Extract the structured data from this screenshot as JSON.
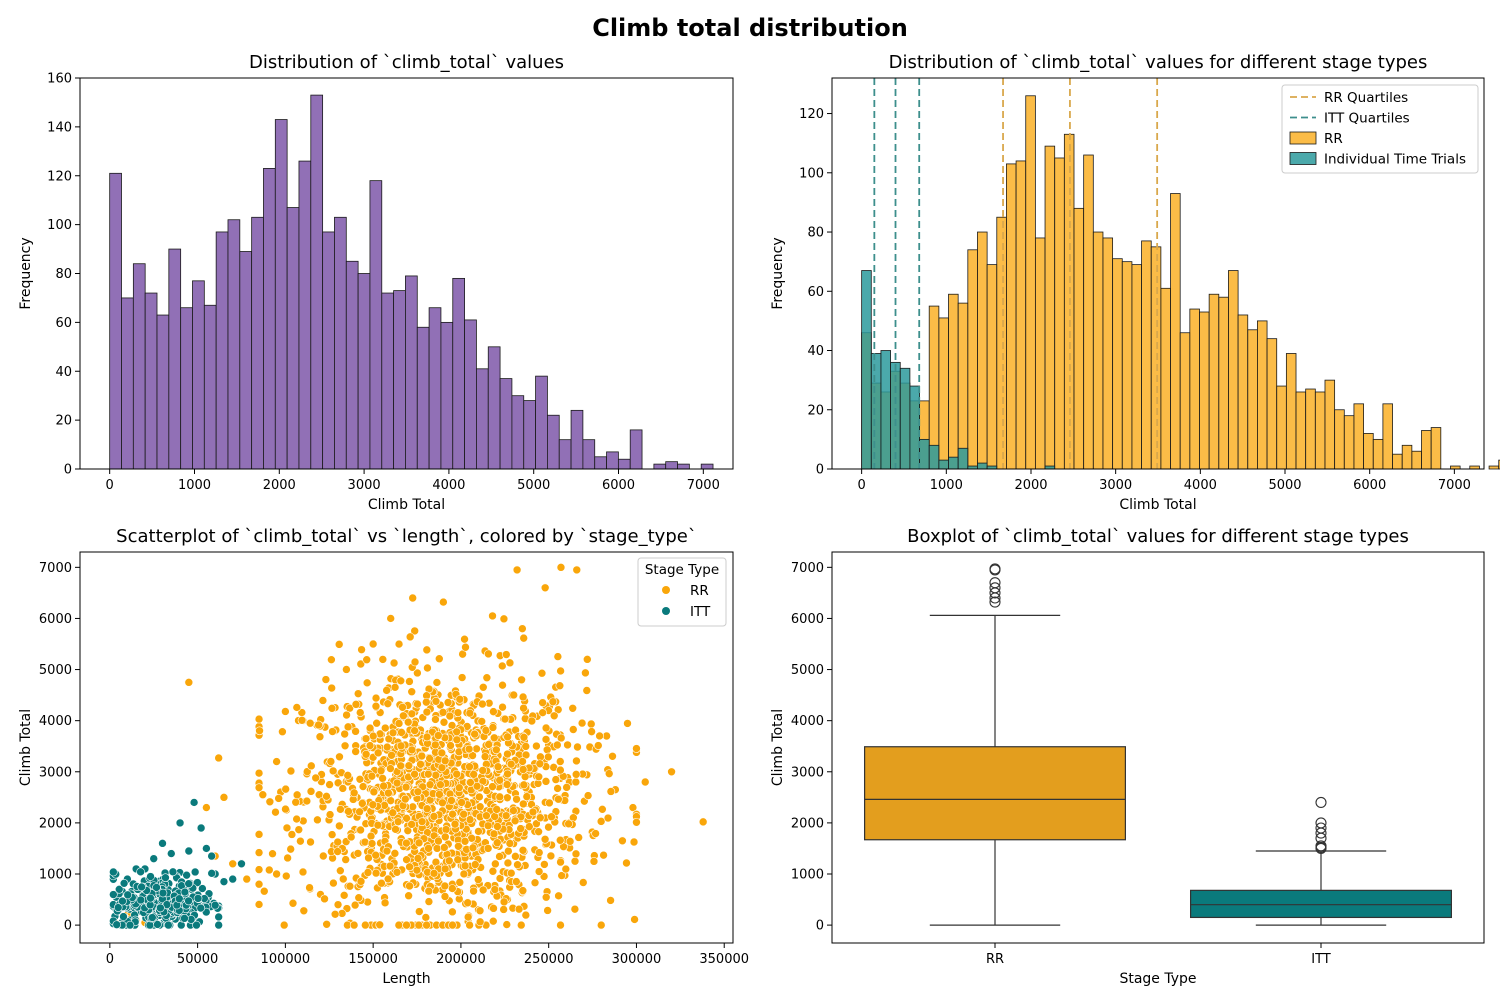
{
  "suptitle": "Climb total distribution",
  "colors": {
    "purple": "#9170b6",
    "orange": "#f9a60a",
    "teal": "#0a7a7c",
    "box_orange": "#e39e1e",
    "teal_light": "#2b9a9c",
    "rr_quartile": "#d9a84c",
    "itt_quartile": "#3d8f8c"
  },
  "chart_data": [
    {
      "type": "bar",
      "id": "hist_all",
      "title": "Distribution of `climb_total` values",
      "xlabel": "Climb Total",
      "ylabel": "Frequency",
      "xlim": [
        -350,
        7350
      ],
      "ylim": [
        0,
        160
      ],
      "xticks": [
        0,
        1000,
        2000,
        3000,
        4000,
        5000,
        6000,
        7000
      ],
      "yticks": [
        0,
        20,
        40,
        60,
        80,
        100,
        120,
        140,
        160
      ],
      "bin_start": 0,
      "bin_width": 139.5,
      "values": [
        121,
        70,
        84,
        72,
        63,
        90,
        66,
        77,
        67,
        97,
        102,
        89,
        103,
        123,
        143,
        107,
        126,
        153,
        97,
        103,
        85,
        80,
        118,
        72,
        73,
        79,
        58,
        66,
        60,
        78,
        61,
        41,
        50,
        37,
        30,
        28,
        38,
        22,
        12,
        24,
        12,
        5,
        7,
        4,
        16,
        0,
        2,
        3,
        2,
        0,
        2
      ]
    },
    {
      "type": "bar",
      "id": "hist_by_type",
      "title": "Distribution of `climb_total` values for different stage types",
      "xlabel": "Climb Total",
      "ylabel": "Frequency",
      "xlim": [
        -350,
        7350
      ],
      "ylim": [
        0,
        132
      ],
      "xticks": [
        0,
        1000,
        2000,
        3000,
        4000,
        5000,
        6000,
        7000
      ],
      "yticks": [
        0,
        20,
        40,
        60,
        80,
        100,
        120
      ],
      "bin_width": 114,
      "series": [
        {
          "name": "RR",
          "bin_start": 0,
          "values": [
            46,
            29,
            26,
            33,
            29,
            23,
            23,
            55,
            51,
            59,
            56,
            74,
            80,
            69,
            85,
            103,
            104,
            126,
            78,
            109,
            105,
            113,
            88,
            106,
            80,
            78,
            71,
            70,
            69,
            77,
            75,
            61,
            93,
            46,
            54,
            53,
            59,
            58,
            67,
            52,
            47,
            50,
            44,
            28,
            39,
            26,
            27,
            26,
            30,
            20,
            18,
            22,
            12,
            10,
            22,
            5,
            8,
            6,
            13,
            14,
            0,
            1,
            0,
            1,
            0,
            1,
            3,
            1,
            1,
            0,
            0,
            1
          ]
        },
        {
          "name": "Individual Time Trials",
          "bin_start": 0,
          "values": [
            67,
            39,
            40,
            36,
            34,
            28,
            10,
            8,
            3,
            4,
            7,
            1,
            2,
            1,
            0,
            0,
            0,
            0,
            0,
            1
          ]
        }
      ],
      "vlines": [
        {
          "name": "RR Quartiles",
          "x": [
            1670,
            2460,
            3490
          ]
        },
        {
          "name": "ITT Quartiles",
          "x": [
            150,
            400,
            680
          ]
        }
      ],
      "legend": {
        "placement": "top-right",
        "entries": [
          "RR Quartiles",
          "ITT Quartiles",
          "RR",
          "Individual Time Trials"
        ]
      }
    },
    {
      "type": "scatter",
      "id": "scatter",
      "title": "Scatterplot of `climb_total` vs `length`, colored by `stage_type`",
      "xlabel": "Length",
      "ylabel": "Climb Total",
      "xlim": [
        -17000,
        355000
      ],
      "ylim": [
        -350,
        7300
      ],
      "xticks": [
        0,
        50000,
        100000,
        150000,
        200000,
        250000,
        300000,
        350000
      ],
      "yticks": [
        0,
        1000,
        2000,
        3000,
        4000,
        5000,
        6000,
        7000
      ],
      "legend": {
        "placement": "top-right",
        "title": "Stage Type",
        "entries": [
          "RR",
          "ITT"
        ]
      },
      "series": [
        {
          "name": "RR",
          "points": [
            [
              45000,
              4750
            ],
            [
              320000,
              3000
            ],
            [
              338000,
              2020
            ],
            [
              305000,
              2800
            ],
            [
              300000,
              3380
            ],
            [
              292000,
              1650
            ],
            [
              298000,
              2300
            ],
            [
              266000,
              6950
            ],
            [
              232000,
              6950
            ],
            [
              257000,
              7000
            ],
            [
              248000,
              6600
            ],
            [
              190000,
              6320
            ],
            [
              160000,
              6000
            ],
            [
              218000,
              6050
            ],
            [
              95000,
              3200
            ],
            [
              100000,
              4180
            ],
            [
              110000,
              4000
            ],
            [
              62000,
              3270
            ],
            [
              55000,
              2300
            ],
            [
              60000,
              1350
            ],
            [
              85000,
              800
            ],
            [
              150000,
              5500
            ],
            [
              235000,
              5800
            ],
            [
              272000,
              5200
            ],
            [
              283000,
              3700
            ],
            [
              288000,
              2650
            ],
            [
              265000,
              1250
            ],
            [
              210000,
              300
            ],
            [
              180000,
              150
            ],
            [
              130000,
              400
            ],
            [
              120000,
              600
            ],
            [
              95000,
              1000
            ],
            [
              78000,
              900
            ],
            [
              70000,
              1200
            ],
            [
              65000,
              2500
            ],
            [
              5000,
              300
            ],
            [
              10000,
              200
            ],
            [
              8000,
              150
            ],
            [
              12000,
              250
            ],
            [
              3000,
              50
            ],
            [
              15000,
              100
            ],
            [
              20000,
              50
            ]
          ],
          "cluster": {
            "center": [
              190000,
              2500
            ],
            "spread": [
              40000,
              1200
            ],
            "count": 1500
          }
        },
        {
          "name": "ITT",
          "points": [
            [
              48000,
              2400
            ],
            [
              55000,
              1500
            ],
            [
              52000,
              1900
            ],
            [
              40000,
              2000
            ],
            [
              45000,
              1450
            ],
            [
              35000,
              1400
            ],
            [
              30000,
              1600
            ],
            [
              60000,
              1000
            ],
            [
              65000,
              850
            ],
            [
              70000,
              900
            ],
            [
              75000,
              1200
            ],
            [
              58000,
              1350
            ],
            [
              25000,
              1300
            ],
            [
              20000,
              1100
            ],
            [
              15000,
              1100
            ],
            [
              10000,
              900
            ],
            [
              5000,
              300
            ],
            [
              8000,
              150
            ],
            [
              12000,
              100
            ]
          ],
          "cluster": {
            "center": [
              30000,
              450
            ],
            "spread": [
              14000,
              280
            ],
            "count": 320
          }
        }
      ]
    },
    {
      "type": "box",
      "id": "boxplot",
      "title": "Boxplot of `climb_total` values for different stage types",
      "xlabel": "Stage Type",
      "ylabel": "Climb Total",
      "ylim": [
        -350,
        7300
      ],
      "yticks": [
        0,
        1000,
        2000,
        3000,
        4000,
        5000,
        6000,
        7000
      ],
      "categories": [
        "RR",
        "ITT"
      ],
      "boxes": [
        {
          "category": "RR",
          "whisker_low": 0,
          "q1": 1670,
          "median": 2460,
          "q3": 3490,
          "whisker_high": 6060,
          "outliers": [
            6320,
            6400,
            6500,
            6600,
            6700,
            6950,
            6970
          ]
        },
        {
          "category": "ITT",
          "whisker_low": 0,
          "q1": 150,
          "median": 400,
          "q3": 680,
          "whisker_high": 1450,
          "outliers": [
            1500,
            1520,
            1550,
            1700,
            1800,
            1900,
            2000,
            2400
          ]
        }
      ]
    }
  ]
}
